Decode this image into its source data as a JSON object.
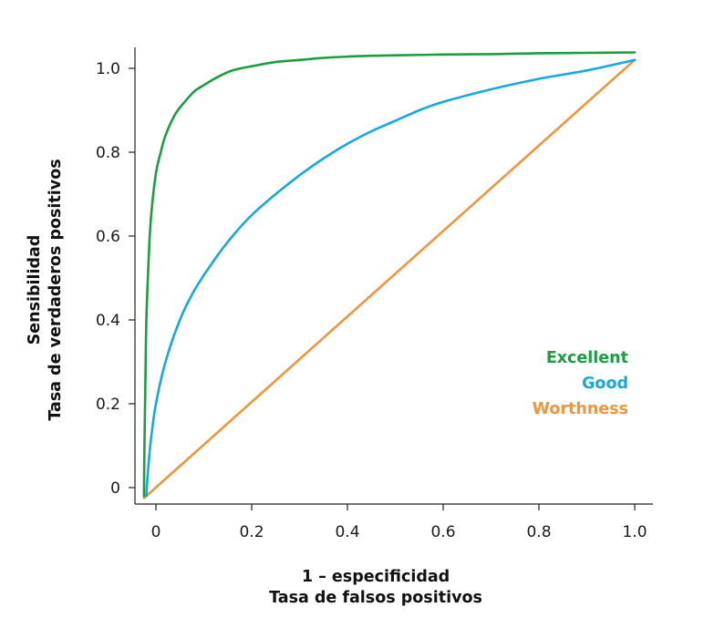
{
  "chart_data": {
    "type": "line",
    "title": "",
    "xlabel": [
      "1 – especificidad",
      "Tasa de falsos positivos"
    ],
    "ylabel": [
      "Sensibilidad",
      "Tasa de verdaderos positivos"
    ],
    "xlim": [
      -0.03,
      1.03
    ],
    "ylim": [
      -0.04,
      1.05
    ],
    "xticks": [
      0,
      0.2,
      0.4,
      0.6,
      0.8,
      1.0
    ],
    "xtick_labels": [
      "0",
      "0.2",
      "0.4",
      "0.6",
      "0.8",
      "1.0"
    ],
    "yticks": [
      0,
      0.2,
      0.4,
      0.6,
      0.8,
      1.0
    ],
    "ytick_labels": [
      "0",
      "0.2",
      "0.4",
      "0.6",
      "0.8",
      "1.0"
    ],
    "grid": false,
    "legend_position": "lower-right",
    "series": [
      {
        "name": "Excellent",
        "color": "#1a9e3f",
        "x": [
          -0.025,
          -0.024,
          -0.022,
          -0.02,
          -0.015,
          -0.01,
          0.0,
          0.01,
          0.02,
          0.04,
          0.06,
          0.08,
          0.1,
          0.13,
          0.16,
          0.2,
          0.25,
          0.3,
          0.35,
          0.4,
          0.45,
          0.5,
          0.6,
          0.7,
          0.8,
          0.9,
          1.0
        ],
        "y": [
          -0.02,
          0.1,
          0.25,
          0.4,
          0.55,
          0.65,
          0.75,
          0.8,
          0.84,
          0.89,
          0.92,
          0.945,
          0.96,
          0.98,
          0.995,
          1.005,
          1.015,
          1.02,
          1.025,
          1.028,
          1.03,
          1.031,
          1.033,
          1.034,
          1.036,
          1.037,
          1.038
        ]
      },
      {
        "name": "Good",
        "color": "#16a8e0",
        "x": [
          -0.02,
          -0.018,
          -0.015,
          -0.01,
          0.0,
          0.02,
          0.05,
          0.08,
          0.12,
          0.16,
          0.2,
          0.25,
          0.3,
          0.35,
          0.4,
          0.45,
          0.5,
          0.55,
          0.6,
          0.7,
          0.8,
          0.9,
          1.0
        ],
        "y": [
          -0.02,
          0.02,
          0.06,
          0.12,
          0.2,
          0.3,
          0.4,
          0.47,
          0.54,
          0.6,
          0.65,
          0.7,
          0.745,
          0.785,
          0.82,
          0.85,
          0.875,
          0.9,
          0.92,
          0.95,
          0.975,
          0.995,
          1.02
        ]
      },
      {
        "name": "Worthness",
        "color": "#f0953c",
        "x": [
          -0.025,
          1.0
        ],
        "y": [
          -0.025,
          1.02
        ]
      }
    ]
  }
}
